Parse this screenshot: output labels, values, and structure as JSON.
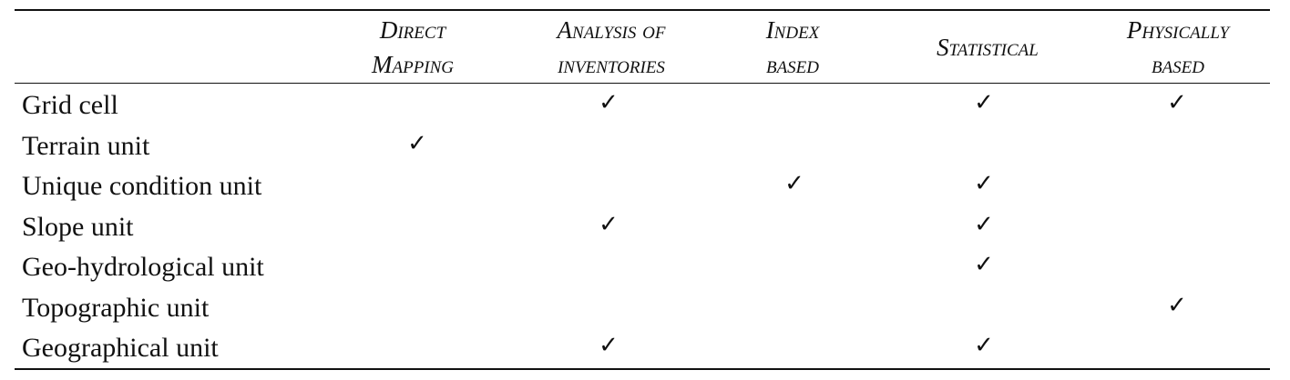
{
  "table": {
    "headers": [
      {
        "line1": "Direct",
        "line2": "Mapping"
      },
      {
        "line1": "Analysis of",
        "line2": "inventories"
      },
      {
        "line1": "Index",
        "line2": "based"
      },
      {
        "line1": "Statistical",
        "line2": ""
      },
      {
        "line1": "Physically",
        "line2": "based"
      }
    ],
    "check_glyph": "✓",
    "rows": [
      {
        "label": "Grid cell",
        "checks": [
          false,
          true,
          false,
          true,
          true
        ]
      },
      {
        "label": "Terrain unit",
        "checks": [
          true,
          false,
          false,
          false,
          false
        ]
      },
      {
        "label": "Unique condition unit",
        "checks": [
          false,
          false,
          true,
          true,
          false
        ]
      },
      {
        "label": "Slope unit",
        "checks": [
          false,
          true,
          false,
          true,
          false
        ]
      },
      {
        "label": "Geo-hydrological unit",
        "checks": [
          false,
          false,
          false,
          true,
          false
        ]
      },
      {
        "label": "Topographic unit",
        "checks": [
          false,
          false,
          false,
          false,
          true
        ]
      },
      {
        "label": "Geographical unit",
        "checks": [
          false,
          true,
          false,
          true,
          false
        ]
      }
    ]
  }
}
